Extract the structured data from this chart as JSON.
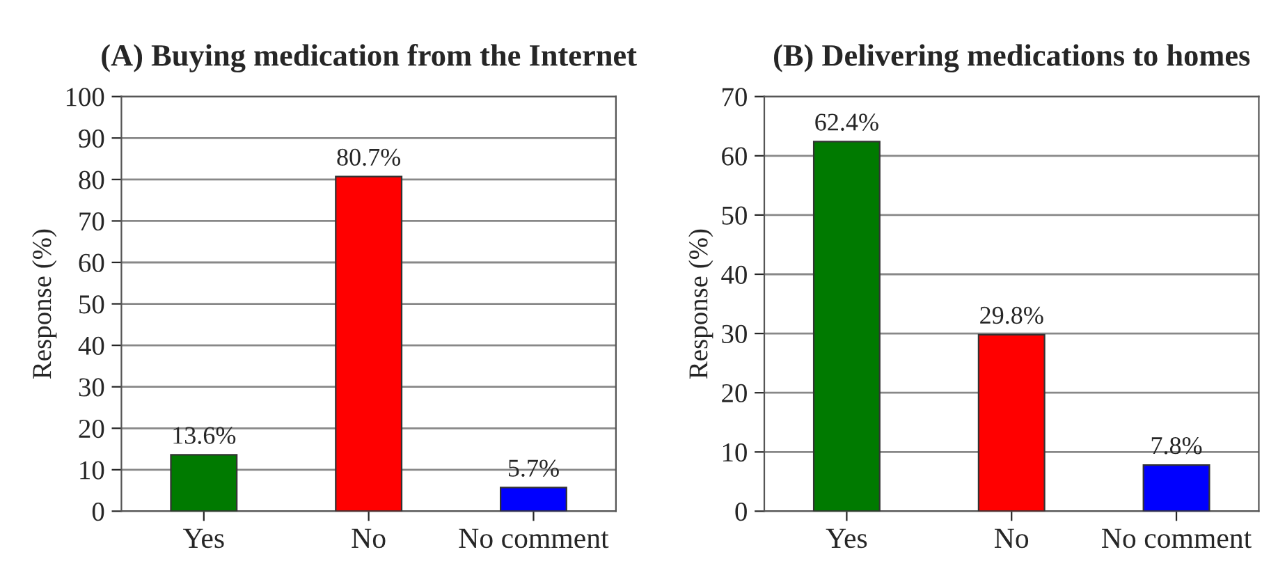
{
  "chart_data": [
    {
      "type": "bar",
      "title": "(A) Buying medication from the Internet",
      "ylabel": "Response (%)",
      "categories": [
        "Yes",
        "No",
        "No comment"
      ],
      "values": [
        13.6,
        80.7,
        5.7
      ],
      "colors": [
        "#007a00",
        "#ff0000",
        "#0000ff"
      ],
      "value_labels": [
        "13.6%",
        "80.7%",
        "5.7%"
      ],
      "ylim": [
        0,
        100
      ],
      "yticks": [
        0,
        10,
        20,
        30,
        40,
        50,
        60,
        70,
        80,
        90,
        100
      ],
      "grid": "y",
      "legend": false
    },
    {
      "type": "bar",
      "title": "(B) Delivering medications to homes",
      "ylabel": "Response (%)",
      "categories": [
        "Yes",
        "No",
        "No comment"
      ],
      "values": [
        62.4,
        29.8,
        7.8
      ],
      "colors": [
        "#007a00",
        "#ff0000",
        "#0000ff"
      ],
      "value_labels": [
        "62.4%",
        "29.8%",
        "7.8%"
      ],
      "ylim": [
        0,
        70
      ],
      "yticks": [
        0,
        10,
        20,
        30,
        40,
        50,
        60,
        70
      ],
      "grid": "y",
      "legend": false
    }
  ]
}
